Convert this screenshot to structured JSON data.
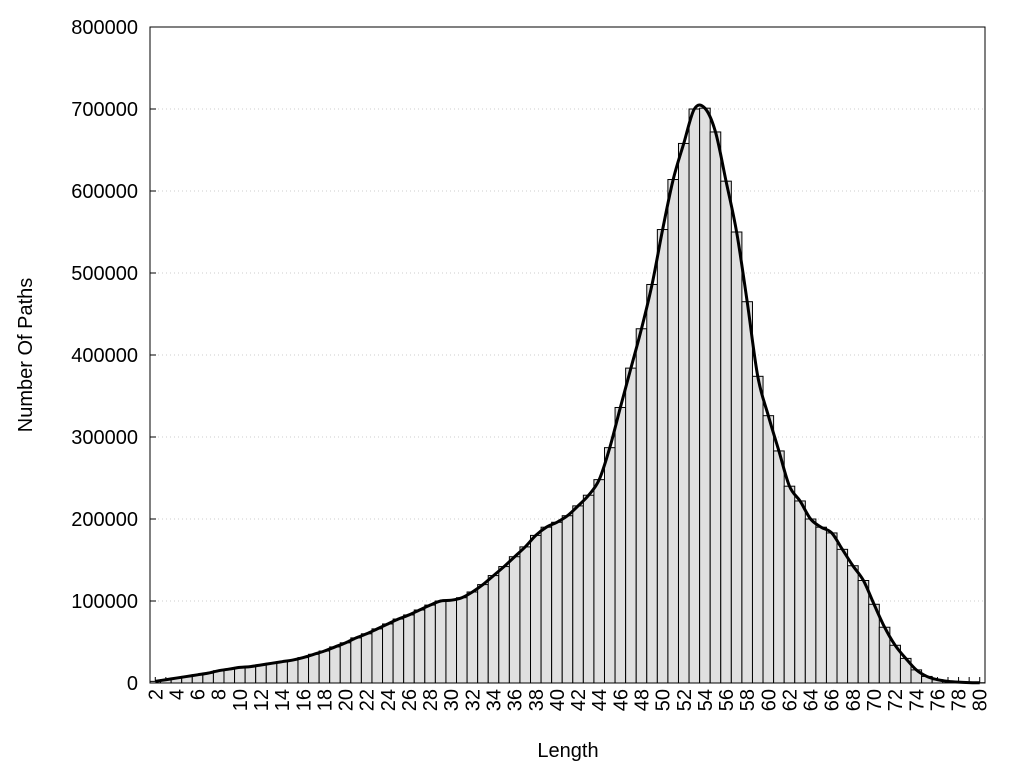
{
  "chart_data": {
    "type": "bar",
    "xlabel": "Length",
    "ylabel": "Number Of Paths",
    "categories": [
      "2",
      null,
      "4",
      null,
      "6",
      null,
      "8",
      null,
      "10",
      null,
      "12",
      null,
      "14",
      null,
      "16",
      null,
      "18",
      null,
      "20",
      null,
      "22",
      null,
      "24",
      null,
      "26",
      null,
      "28",
      null,
      "30",
      null,
      "32",
      null,
      "34",
      null,
      "36",
      null,
      "38",
      null,
      "40",
      null,
      "42",
      null,
      "44",
      null,
      "46",
      null,
      "48",
      null,
      "50",
      null,
      "52",
      null,
      "54",
      null,
      "56",
      null,
      "58",
      null,
      "60",
      null,
      "62",
      null,
      "64",
      null,
      "66",
      null,
      "68",
      null,
      "70",
      null,
      "72",
      null,
      "74",
      null,
      "76",
      null,
      "78",
      null,
      "80"
    ],
    "values": [
      2000,
      4000,
      6000,
      8000,
      10000,
      12000,
      15000,
      17000,
      19000,
      20000,
      22000,
      24000,
      26000,
      28000,
      31000,
      35000,
      39000,
      44000,
      49000,
      55000,
      60000,
      66000,
      72000,
      78000,
      83000,
      89000,
      95000,
      100000,
      101000,
      104000,
      111000,
      120000,
      131000,
      142000,
      154000,
      166000,
      180000,
      190000,
      196000,
      204000,
      216000,
      229000,
      248000,
      287000,
      336000,
      384000,
      432000,
      486000,
      553000,
      614000,
      658000,
      700000,
      701000,
      672000,
      612000,
      550000,
      465000,
      374000,
      326000,
      283000,
      240000,
      222000,
      200000,
      190000,
      183000,
      163000,
      143000,
      125000,
      96000,
      68000,
      46000,
      30000,
      16000,
      8000,
      4000,
      2000,
      1000,
      500,
      300
    ],
    "color": "#e0e0e0",
    "line_color": "#000000",
    "smooth_line": true,
    "ylim": [
      0,
      800000
    ],
    "yticks": [
      0,
      100000,
      200000,
      300000,
      400000,
      500000,
      600000,
      700000,
      800000
    ],
    "grid": true
  }
}
